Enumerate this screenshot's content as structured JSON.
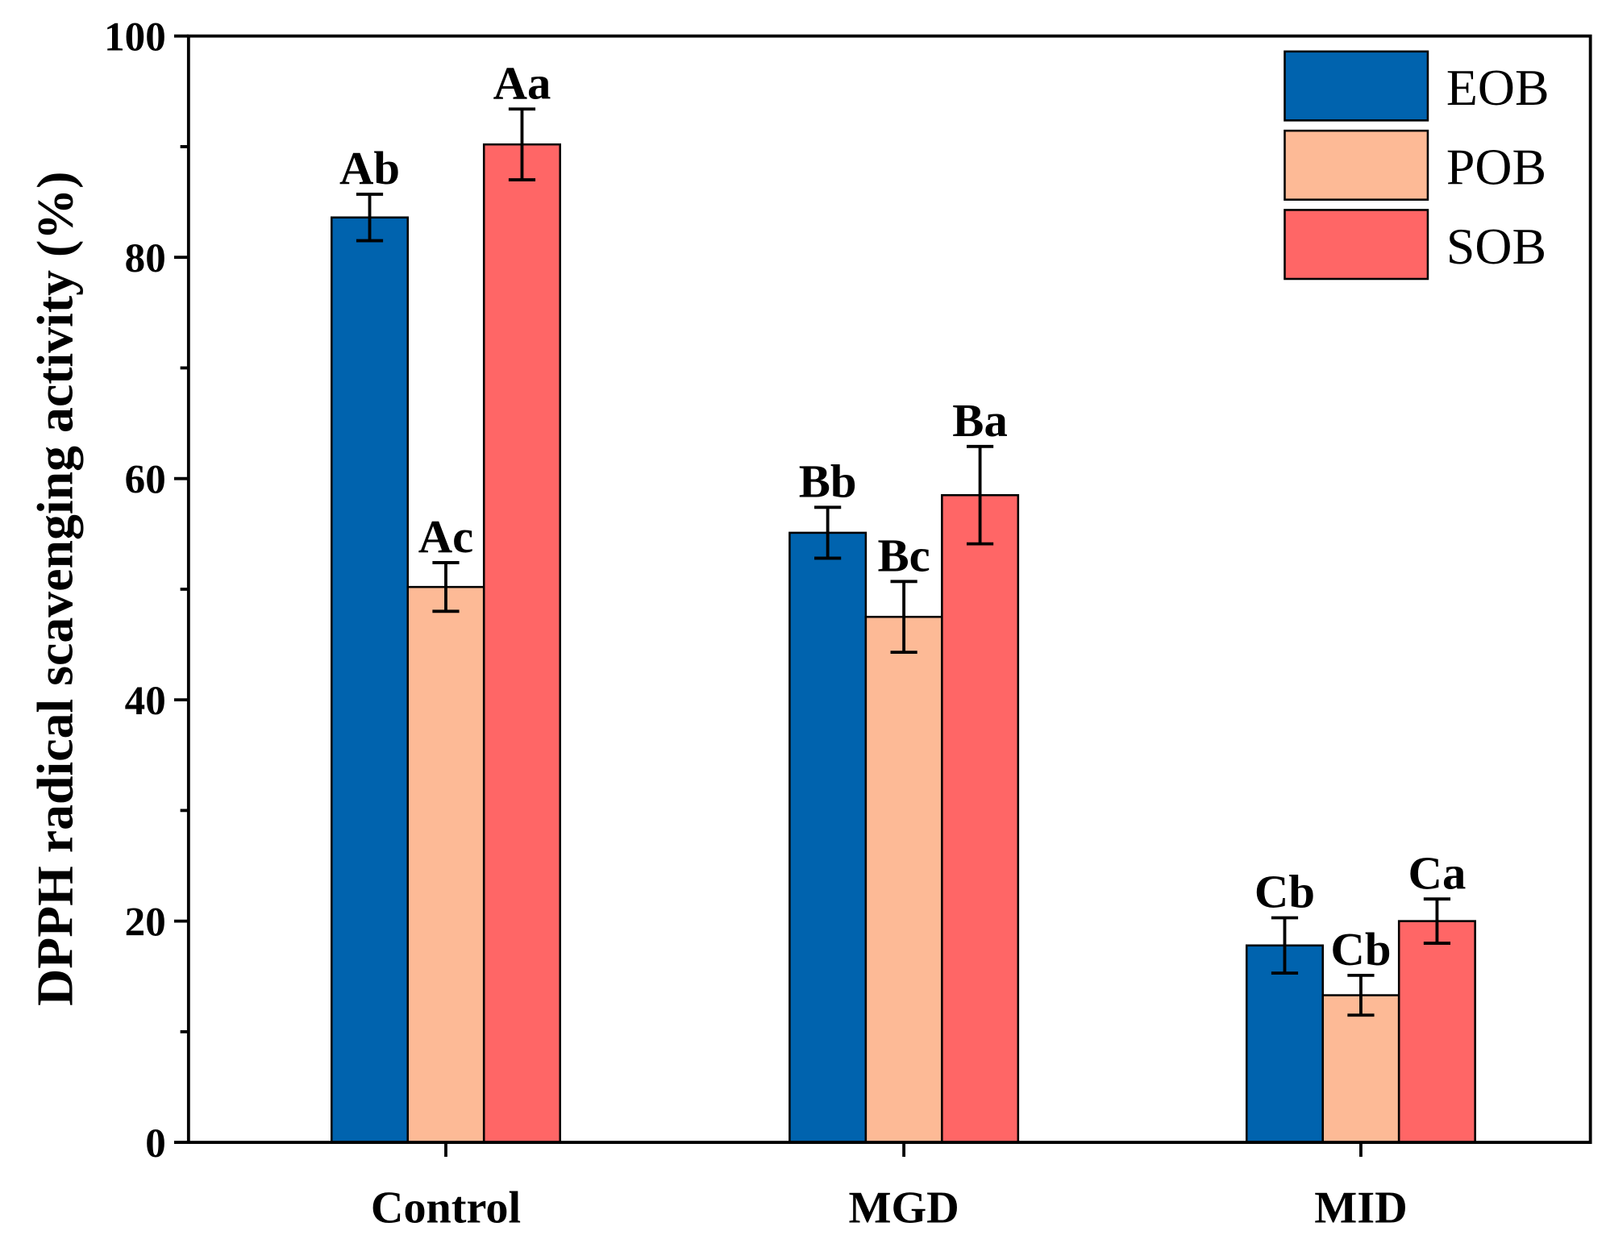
{
  "chart_data": {
    "type": "bar",
    "title": "",
    "xlabel": "",
    "ylabel": "DPPH radical scavenging activity (%)",
    "ylim": [
      0,
      100
    ],
    "yticks": [
      0,
      20,
      40,
      60,
      80,
      100
    ],
    "categories": [
      "Control",
      "MGD",
      "MID"
    ],
    "series": [
      {
        "name": "EOB",
        "color": "#0063AE",
        "values": [
          83.6,
          55.1,
          17.8
        ],
        "errors": [
          2.1,
          2.3,
          2.5
        ],
        "labels": [
          "Ab",
          "Bb",
          "Cb"
        ]
      },
      {
        "name": "POB",
        "color": "#FDBA96",
        "values": [
          50.2,
          47.5,
          13.3
        ],
        "errors": [
          2.2,
          3.2,
          1.8
        ],
        "labels": [
          "Ac",
          "Bc",
          "Cb"
        ]
      },
      {
        "name": "SOB",
        "color": "#FF6666",
        "values": [
          90.2,
          58.5,
          20.0
        ],
        "errors": [
          3.2,
          4.4,
          2.0
        ],
        "labels": [
          "Aa",
          "Ba",
          "Ca"
        ]
      }
    ],
    "legend": "top-right",
    "grid": false
  }
}
